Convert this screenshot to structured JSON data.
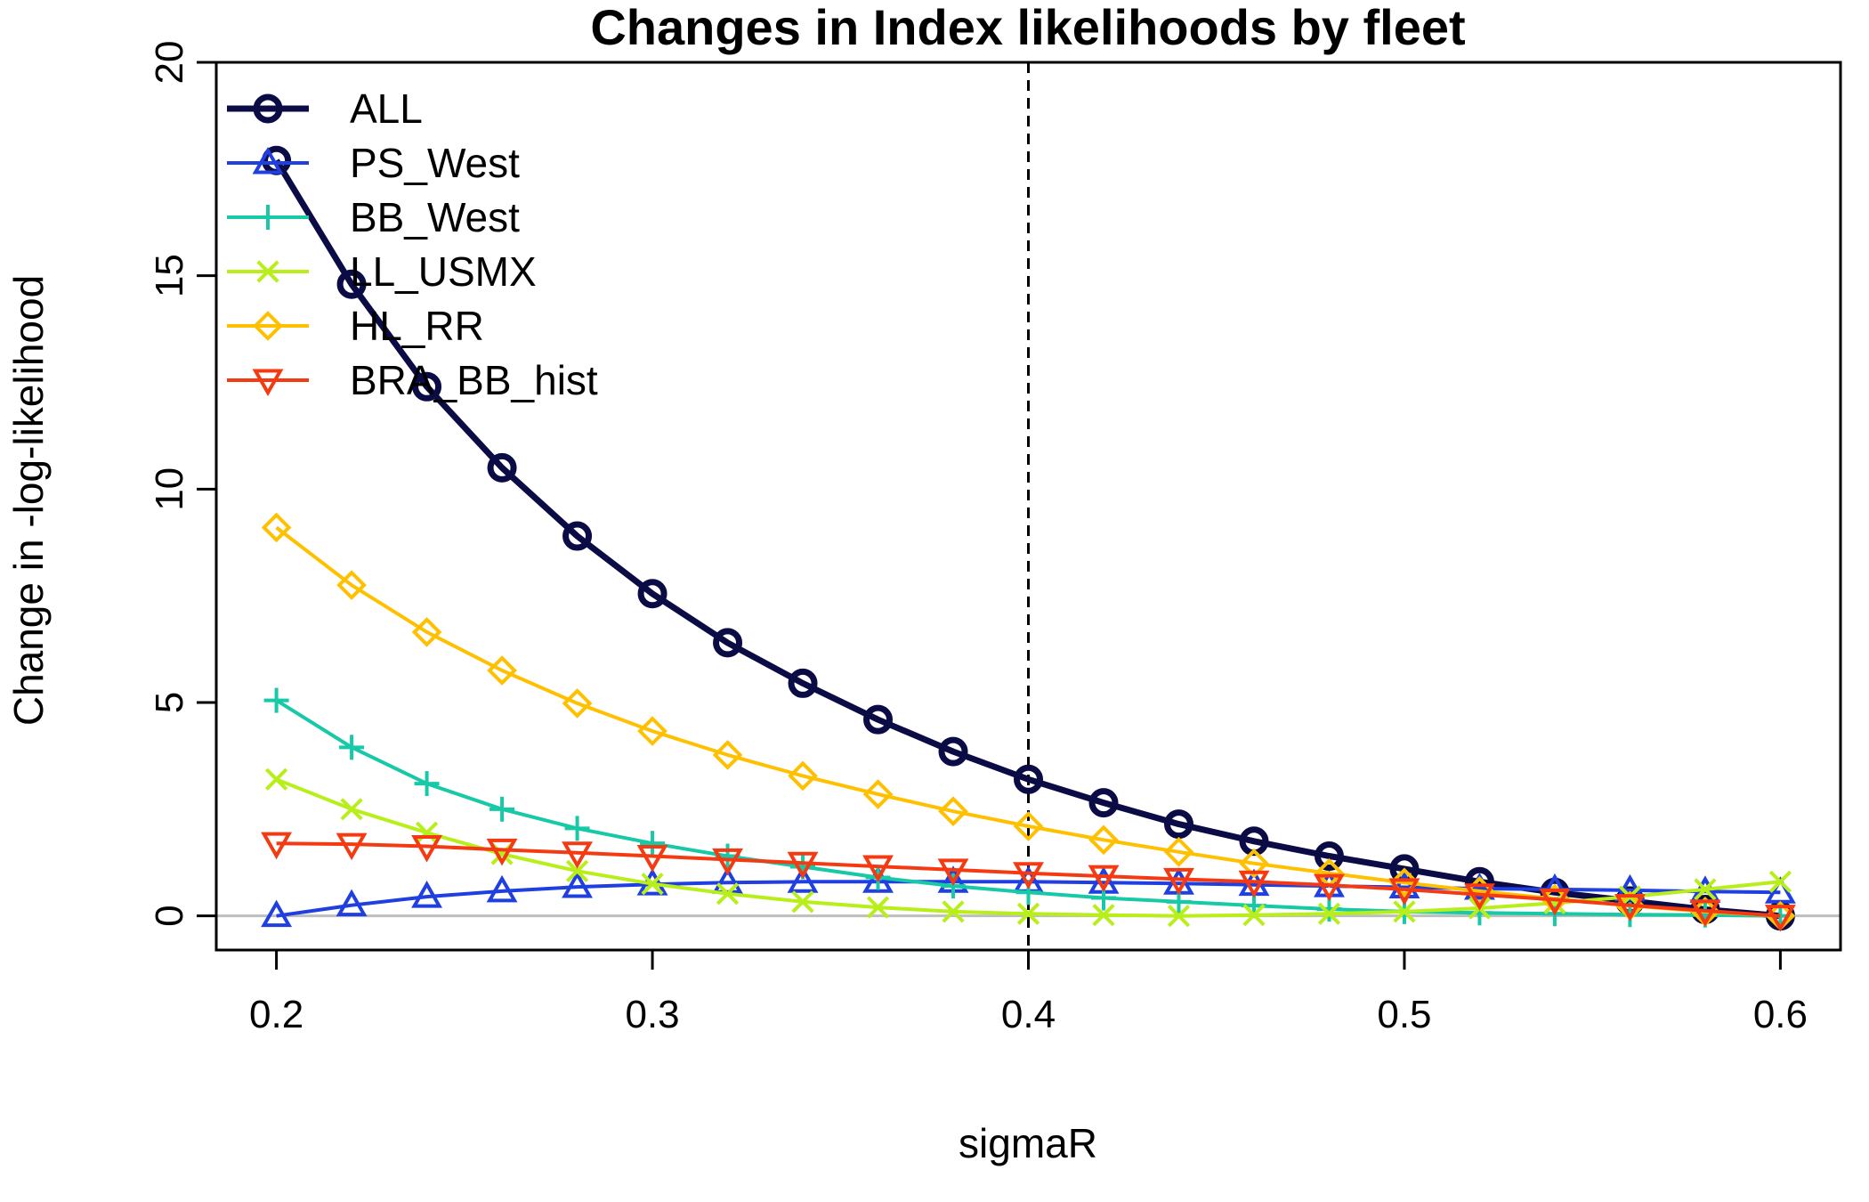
{
  "chart_data": {
    "type": "line",
    "title": "Changes in Index likelihoods by fleet",
    "xlabel": "sigmaR",
    "ylabel": "Change in -log-likelihood",
    "xlim": [
      0.184,
      0.616
    ],
    "ylim": [
      -0.8,
      20.0
    ],
    "xticks": [
      0.2,
      0.3,
      0.4,
      0.5,
      0.6
    ],
    "xtick_labels": [
      "0.2",
      "0.3",
      "0.4",
      "0.5",
      "0.6"
    ],
    "yticks": [
      0,
      5,
      10,
      15,
      20
    ],
    "ytick_labels": [
      "0",
      "5",
      "10",
      "15",
      "20"
    ],
    "reference_vline": 0.4,
    "reference_hline": 0,
    "grid": false,
    "legend_position": "top-left",
    "x": [
      0.2,
      0.22,
      0.24,
      0.26,
      0.28,
      0.3,
      0.32,
      0.34,
      0.36,
      0.38,
      0.4,
      0.42,
      0.44,
      0.46,
      0.48,
      0.5,
      0.52,
      0.54,
      0.56,
      0.58,
      0.6
    ],
    "series": [
      {
        "name": "ALL",
        "color": "#0b0b45",
        "marker": "circle",
        "width": 7,
        "values": [
          17.7,
          14.8,
          12.4,
          10.5,
          8.9,
          7.55,
          6.4,
          5.45,
          4.6,
          3.85,
          3.2,
          2.65,
          2.15,
          1.75,
          1.4,
          1.1,
          0.8,
          0.55,
          0.35,
          0.15,
          0.0
        ]
      },
      {
        "name": "PS_West",
        "color": "#1f3fe0",
        "marker": "triangle-up",
        "width": 4,
        "values": [
          0.0,
          0.25,
          0.45,
          0.58,
          0.68,
          0.74,
          0.78,
          0.8,
          0.8,
          0.8,
          0.8,
          0.78,
          0.76,
          0.73,
          0.7,
          0.67,
          0.64,
          0.62,
          0.6,
          0.57,
          0.55
        ]
      },
      {
        "name": "BB_West",
        "color": "#17c9a6",
        "marker": "plus",
        "width": 4,
        "values": [
          5.05,
          3.95,
          3.1,
          2.5,
          2.05,
          1.7,
          1.4,
          1.15,
          0.9,
          0.7,
          0.55,
          0.42,
          0.33,
          0.24,
          0.16,
          0.1,
          0.07,
          0.05,
          0.03,
          0.02,
          0.0
        ]
      },
      {
        "name": "LL_USMX",
        "color": "#b8ee1a",
        "marker": "x",
        "width": 4,
        "values": [
          3.2,
          2.5,
          1.95,
          1.45,
          1.05,
          0.75,
          0.52,
          0.33,
          0.2,
          0.1,
          0.05,
          0.02,
          0.0,
          0.02,
          0.05,
          0.1,
          0.18,
          0.3,
          0.45,
          0.62,
          0.8
        ]
      },
      {
        "name": "HL_RR",
        "color": "#ffc000",
        "marker": "diamond",
        "width": 4,
        "values": [
          9.1,
          7.75,
          6.65,
          5.75,
          4.98,
          4.33,
          3.77,
          3.28,
          2.85,
          2.45,
          2.1,
          1.78,
          1.5,
          1.23,
          1.0,
          0.78,
          0.58,
          0.4,
          0.24,
          0.1,
          0.0
        ]
      },
      {
        "name": "BRA_BB_hist",
        "color": "#f43a12",
        "marker": "triangle-down",
        "width": 4,
        "values": [
          1.7,
          1.68,
          1.63,
          1.55,
          1.48,
          1.4,
          1.32,
          1.24,
          1.16,
          1.08,
          1.0,
          0.93,
          0.86,
          0.8,
          0.72,
          0.62,
          0.5,
          0.38,
          0.25,
          0.12,
          0.0
        ]
      }
    ]
  }
}
